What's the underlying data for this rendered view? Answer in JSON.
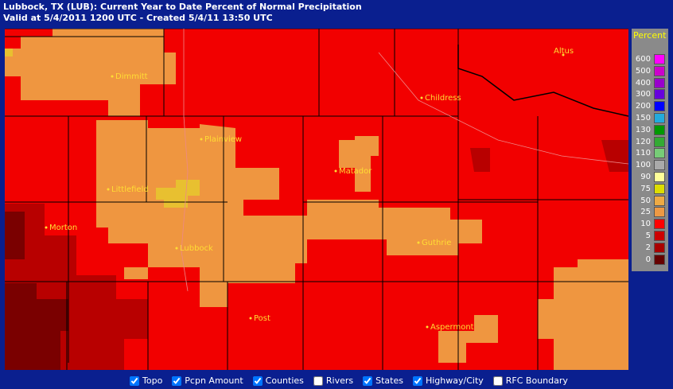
{
  "header": {
    "line1": "Lubbock, TX (LUB): Current Year to Date Percent of Normal Precipitation",
    "line2": "Valid at 5/4/2011 1200 UTC - Created 5/4/11 13:50 UTC"
  },
  "cities": [
    "Dimmitt",
    "Childress",
    "Altus",
    "Plainview",
    "Matador",
    "Littlefield",
    "Morton",
    "Guthrie",
    "Lubbock",
    "Post",
    "Aspermont"
  ],
  "legend": {
    "title": "Percent",
    "items": [
      {
        "label": "600",
        "color": "#ff00ff"
      },
      {
        "label": "500",
        "color": "#cc00cc"
      },
      {
        "label": "400",
        "color": "#9900cc"
      },
      {
        "label": "300",
        "color": "#6600dd"
      },
      {
        "label": "200",
        "color": "#0000ff"
      },
      {
        "label": "150",
        "color": "#22aadd"
      },
      {
        "label": "130",
        "color": "#009900"
      },
      {
        "label": "120",
        "color": "#33aa33"
      },
      {
        "label": "110",
        "color": "#77cc77"
      },
      {
        "label": "100",
        "color": "#aaaaaa"
      },
      {
        "label": "90",
        "color": "#ffff99"
      },
      {
        "label": "75",
        "color": "#dddd00"
      },
      {
        "label": "50",
        "color": "#eeaa44"
      },
      {
        "label": "25",
        "color": "#ee9944"
      },
      {
        "label": "10",
        "color": "#ff0000"
      },
      {
        "label": "5",
        "color": "#cc0000"
      },
      {
        "label": "2",
        "color": "#aa0000"
      },
      {
        "label": "0",
        "color": "#660000"
      }
    ]
  },
  "controls": [
    {
      "label": "Topo",
      "checked": true
    },
    {
      "label": "Pcpn Amount",
      "checked": true
    },
    {
      "label": "Counties",
      "checked": true
    },
    {
      "label": "Rivers",
      "checked": false
    },
    {
      "label": "States",
      "checked": true
    },
    {
      "label": "Highway/City",
      "checked": true
    },
    {
      "label": "RFC Boundary",
      "checked": false
    }
  ]
}
